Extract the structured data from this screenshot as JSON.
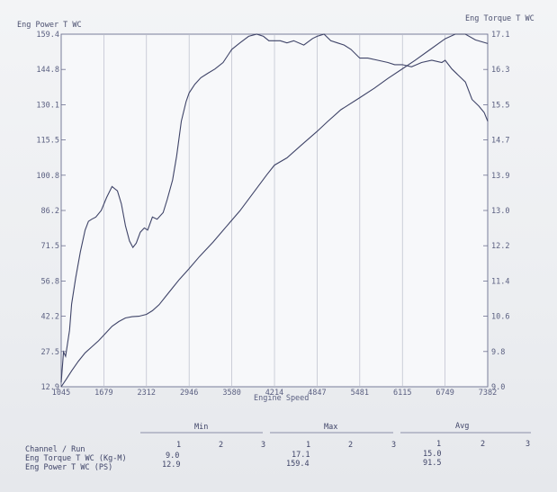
{
  "chart_data": {
    "type": "line",
    "xlabel": "Engine Speed",
    "x_ticks": [
      1045,
      1679,
      2312,
      2946,
      3580,
      4214,
      4847,
      5481,
      6115,
      6749,
      7382
    ],
    "xlim": [
      1045,
      7382
    ],
    "left_axis": {
      "label": "Eng Power T WC",
      "ticks": [
        "12.9",
        "27.5",
        "42.2",
        "56.8",
        "71.5",
        "86.2",
        "100.8",
        "115.5",
        "130.1",
        "144.8",
        "159.4"
      ],
      "ylim": [
        12.9,
        159.4
      ]
    },
    "right_axis": {
      "label": "Eng Torque T WC",
      "ticks": [
        "9.0",
        "9.8",
        "10.6",
        "11.4",
        "12.2",
        "13.0",
        "13.9",
        "14.7",
        "15.5",
        "16.3",
        "17.1"
      ],
      "ylim": [
        9.0,
        17.1
      ]
    },
    "grid": true,
    "series": [
      {
        "name": "Eng Power T WC",
        "axis": "left",
        "x": [
          1045,
          1120,
          1200,
          1300,
          1400,
          1500,
          1600,
          1700,
          1800,
          1900,
          2000,
          2100,
          2200,
          2312,
          2400,
          2500,
          2600,
          2700,
          2800,
          2946,
          3100,
          3300,
          3500,
          3700,
          3900,
          4100,
          4214,
          4400,
          4600,
          4847,
          5000,
          5200,
          5481,
          5700,
          5900,
          6115,
          6300,
          6500,
          6749,
          6900,
          7050,
          7200,
          7382
        ],
        "values": [
          12.9,
          16.0,
          19.5,
          23.5,
          27.0,
          29.5,
          32.0,
          35.0,
          38.0,
          40.0,
          41.5,
          42.0,
          42.2,
          43.0,
          44.5,
          47.0,
          50.5,
          54.0,
          57.5,
          62.0,
          67.0,
          73.0,
          79.5,
          86.0,
          93.5,
          101.0,
          105.0,
          108.0,
          113.0,
          119.0,
          123.0,
          128.0,
          133.0,
          137.0,
          141.0,
          145.0,
          148.5,
          152.5,
          157.5,
          159.4,
          159.4,
          157.0,
          155.5
        ]
      },
      {
        "name": "Eng Torque T WC",
        "axis": "right",
        "x": [
          1045,
          1080,
          1110,
          1140,
          1170,
          1200,
          1260,
          1330,
          1400,
          1450,
          1500,
          1560,
          1640,
          1720,
          1800,
          1880,
          1940,
          2000,
          2060,
          2110,
          2160,
          2220,
          2280,
          2330,
          2400,
          2470,
          2560,
          2620,
          2700,
          2760,
          2830,
          2900,
          2946,
          3030,
          3120,
          3220,
          3330,
          3450,
          3580,
          3700,
          3830,
          3950,
          4050,
          4130,
          4214,
          4300,
          4400,
          4500,
          4650,
          4780,
          4847,
          4950,
          5050,
          5150,
          5250,
          5350,
          5481,
          5600,
          5750,
          5900,
          6000,
          6115,
          6250,
          6400,
          6550,
          6700,
          6749,
          6850,
          6950,
          7050,
          7150,
          7250,
          7330,
          7382
        ],
        "values": [
          9.1,
          9.8,
          9.7,
          10.0,
          10.3,
          10.9,
          11.5,
          12.1,
          12.6,
          12.8,
          12.85,
          12.9,
          13.05,
          13.35,
          13.6,
          13.5,
          13.2,
          12.7,
          12.35,
          12.2,
          12.3,
          12.55,
          12.65,
          12.6,
          12.9,
          12.85,
          13.0,
          13.3,
          13.75,
          14.3,
          15.1,
          15.55,
          15.75,
          15.95,
          16.1,
          16.2,
          16.3,
          16.45,
          16.75,
          16.9,
          17.05,
          17.1,
          17.05,
          16.95,
          16.95,
          16.95,
          16.9,
          16.95,
          16.85,
          17.0,
          17.05,
          17.1,
          16.95,
          16.9,
          16.85,
          16.75,
          16.55,
          16.55,
          16.5,
          16.45,
          16.4,
          16.4,
          16.35,
          16.45,
          16.5,
          16.45,
          16.5,
          16.3,
          16.15,
          16.0,
          15.6,
          15.45,
          15.3,
          15.1
        ]
      }
    ]
  },
  "summary_table": {
    "groups": [
      "Min",
      "Max",
      "Avg"
    ],
    "run_numbers": [
      "1",
      "2",
      "3"
    ],
    "header_label": "Channel / Run",
    "rows": [
      {
        "label": "Eng Torque T WC (Kg-M)",
        "min": "9.0",
        "max": "17.1",
        "avg": "15.0"
      },
      {
        "label": "Eng Power T WC (PS)",
        "min": "12.9",
        "max": "159.4",
        "avg": "91.5"
      }
    ]
  }
}
